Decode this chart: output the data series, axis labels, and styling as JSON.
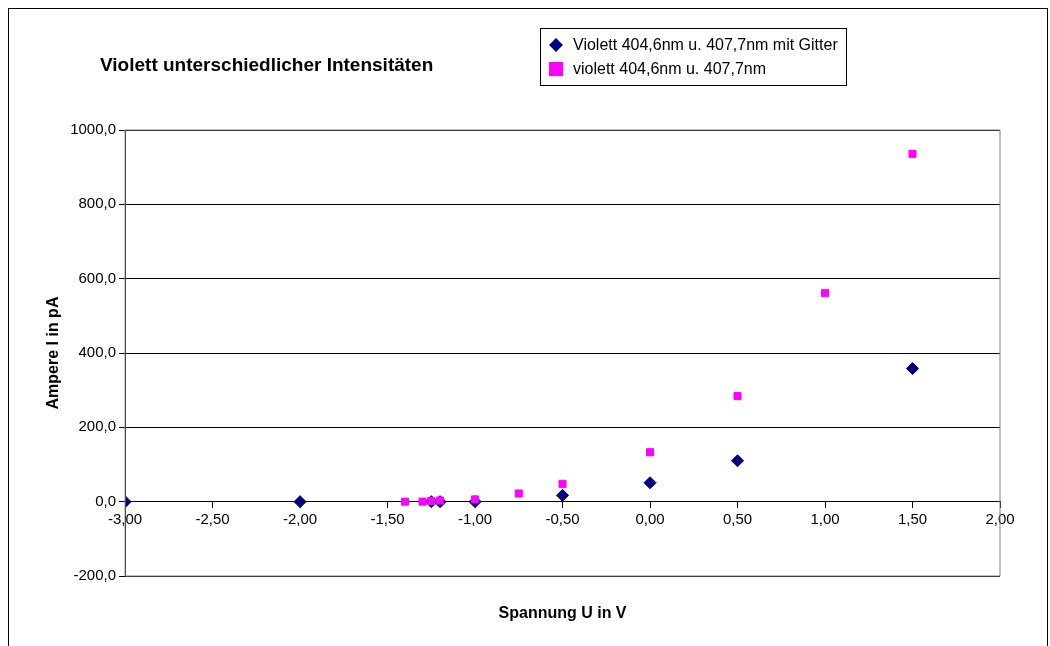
{
  "chart_data": {
    "type": "scatter",
    "title": "Violett unterschiedlicher Intensitäten",
    "xlabel": "Spannung U in V",
    "ylabel": "Ampere I in pA",
    "series": [
      {
        "name": "Violett 404,6nm u. 407,7nm mit Gitter",
        "color": "#000080",
        "marker": "diamond",
        "x": [
          -3,
          -2,
          -1.25,
          -1.2,
          -1,
          -0.5,
          0,
          0.5,
          1.5
        ],
        "values": [
          0,
          0,
          0,
          0,
          0,
          17,
          51,
          110,
          358
        ]
      },
      {
        "name": "violett 404,6nm u. 407,7nm",
        "color": "#ff00ff",
        "marker": "square",
        "x": [
          -1.4,
          -1.3,
          -1.25,
          -1.2,
          -1,
          -0.75,
          -0.5,
          0,
          0.5,
          1,
          1.5
        ],
        "values": [
          0,
          0,
          2,
          3,
          6,
          22,
          48,
          133,
          284,
          561,
          936
        ]
      }
    ],
    "xlim": [
      -3,
      2
    ],
    "xticks": [
      {
        "value": -3,
        "label": "-3,00"
      },
      {
        "value": -2.5,
        "label": "-2,50"
      },
      {
        "value": -2,
        "label": "-2,00"
      },
      {
        "value": -1.5,
        "label": "-1,50"
      },
      {
        "value": -1,
        "label": "-1,00"
      },
      {
        "value": -0.5,
        "label": "-0,50"
      },
      {
        "value": 0,
        "label": "0,00"
      },
      {
        "value": 0.5,
        "label": "0,50"
      },
      {
        "value": 1,
        "label": "1,00"
      },
      {
        "value": 1.5,
        "label": "1,50"
      },
      {
        "value": 2,
        "label": "2,00"
      }
    ],
    "ylim": [
      -200,
      1000
    ],
    "yticks": [
      {
        "value": -200,
        "label": "-200,0"
      },
      {
        "value": 0,
        "label": "0,0"
      },
      {
        "value": 200,
        "label": "200,0"
      },
      {
        "value": 400,
        "label": "400,0"
      },
      {
        "value": 600,
        "label": "600,0"
      },
      {
        "value": 800,
        "label": "800,0"
      },
      {
        "value": 1000,
        "label": "1000,0"
      }
    ],
    "grid": "y",
    "legend": "top right"
  }
}
